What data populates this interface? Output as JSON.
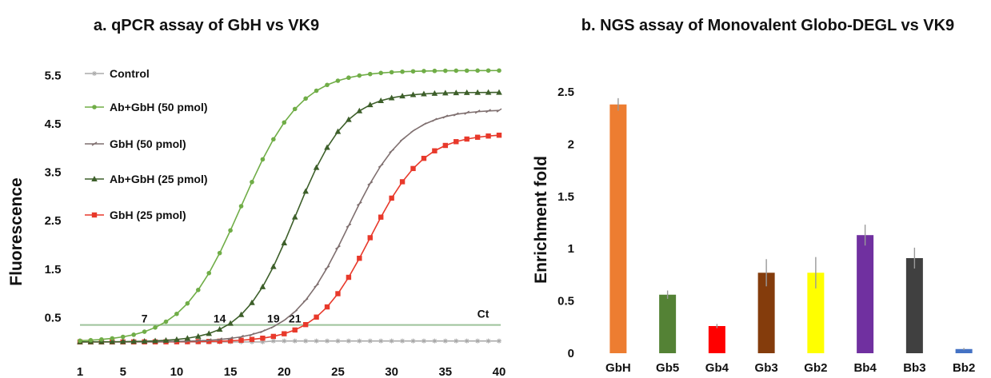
{
  "chart_data": [
    {
      "type": "line",
      "title": "a. qPCR assay of GbH vs VK9",
      "xlabel": "",
      "ylabel": "Fluorescence",
      "xlim": [
        1,
        40
      ],
      "ylim": [
        -0.2,
        5.9
      ],
      "xticks": [
        "1",
        "5",
        "10",
        "15",
        "20",
        "25",
        "30",
        "35",
        "40"
      ],
      "yticks": [
        "0.5",
        "1.5",
        "2.5",
        "3.5",
        "4.5",
        "5.5"
      ],
      "threshold": {
        "value": 0.35,
        "label": "Ct",
        "color": "#9ec29a"
      },
      "ct_labels": [
        {
          "text": "7",
          "x": 7
        },
        {
          "text": "14",
          "x": 14
        },
        {
          "text": "19",
          "x": 19
        },
        {
          "text": "21",
          "x": 21
        }
      ],
      "legend_position": "top-left",
      "series": [
        {
          "name": "Control",
          "color": "#aaaaaa",
          "marker": "star",
          "base": 0.0,
          "top": 0.05,
          "mid": 19,
          "k": 1.5
        },
        {
          "name": "Ab+GbH (50 pmol)",
          "color": "#70ad47",
          "marker": "circle",
          "base": 0.0,
          "top": 5.6,
          "mid": 16,
          "k": 0.36
        },
        {
          "name": "GbH (50 pmol)",
          "color": "#7f6f6f",
          "marker": "dash",
          "base": 0.0,
          "top": 4.8,
          "mid": 26,
          "k": 0.38
        },
        {
          "name": "Ab+GbH (25 pmol)",
          "color": "#3d5f2a",
          "marker": "triangle",
          "base": 0.0,
          "top": 5.15,
          "mid": 21,
          "k": 0.42
        },
        {
          "name": "GbH (25 pmol)",
          "color": "#e8392b",
          "marker": "square",
          "base": 0.0,
          "top": 4.3,
          "mid": 28,
          "k": 0.4
        }
      ]
    },
    {
      "type": "bar",
      "title": "b. NGS assay of Monovalent Globo-DEGL vs VK9",
      "xlabel": "",
      "ylabel": "Enrichment fold",
      "ylim": [
        0,
        2.5
      ],
      "yticks": [
        "0",
        "0.5",
        "1",
        "1.5",
        "2",
        "2.5"
      ],
      "categories": [
        "GbH",
        "Gb5",
        "Gb4",
        "Gb3",
        "Gb2",
        "Bb4",
        "Bb3",
        "Bb2"
      ],
      "values": [
        2.38,
        0.56,
        0.26,
        0.77,
        0.77,
        1.13,
        0.91,
        0.04
      ],
      "errors": [
        0.06,
        0.04,
        0.02,
        0.13,
        0.15,
        0.1,
        0.1,
        0.01
      ],
      "colors": [
        "#ed7d31",
        "#548235",
        "#ff0000",
        "#843c0c",
        "#ffff00",
        "#7030a0",
        "#404040",
        "#4472c4"
      ]
    }
  ]
}
